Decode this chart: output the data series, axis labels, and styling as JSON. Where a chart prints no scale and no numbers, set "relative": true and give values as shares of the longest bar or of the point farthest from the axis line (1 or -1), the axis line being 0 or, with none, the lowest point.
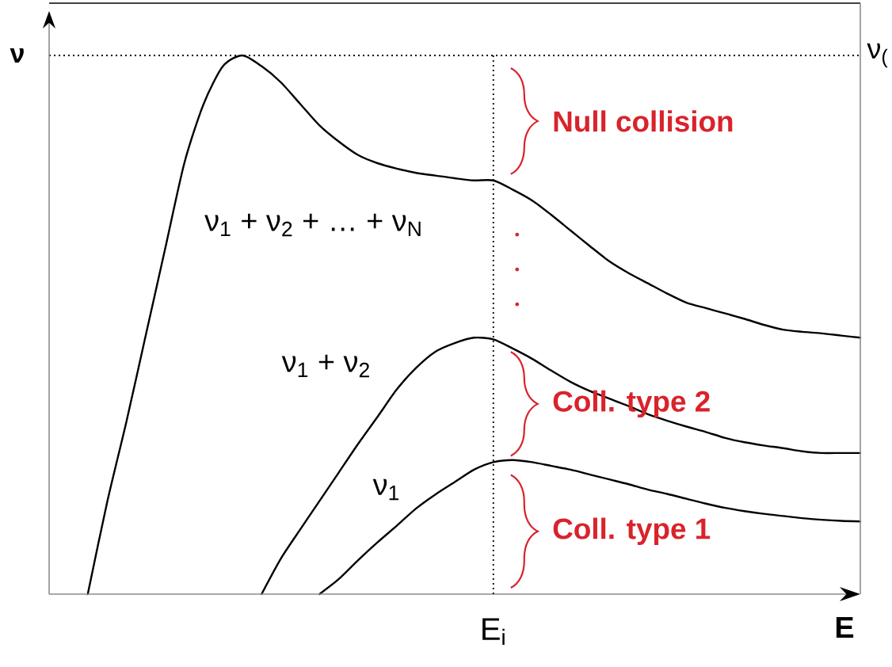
{
  "chart_data": {
    "type": "line",
    "relative": true,
    "xlabel": "E",
    "ylabel": "ν",
    "line_style": "solid",
    "categories": [
      null,
      null,
      null,
      null,
      null,
      null,
      null,
      null,
      null,
      null,
      null,
      null,
      null,
      null,
      null,
      null,
      null,
      null,
      null,
      null,
      null,
      null,
      null,
      null,
      null,
      null,
      null,
      null,
      null,
      null,
      null,
      null,
      null,
      null,
      null,
      null,
      null,
      null,
      null,
      null,
      null,
      null,
      null
    ],
    "series": [
      {
        "name": "ν$_{1}$ + ν$_{2}$ + … + ν$_{N}$",
        "color": "#000000",
        "values": [
          null,
          null,
          0,
          0.17,
          0.32,
          0.48,
          0.64,
          0.8,
          0.91,
          0.98,
          1,
          0.98,
          0.95,
          0.91,
          0.87,
          0.84,
          0.815,
          0.8,
          0.79,
          0.782,
          0.777,
          0.772,
          0.768,
          0.768,
          0.751,
          0.731,
          0.704,
          0.675,
          0.646,
          0.618,
          0.596,
          0.577,
          0.558,
          0.541,
          0.531,
          0.521,
          0.511,
          0.5,
          0.491,
          0.487,
          0.484,
          0.48,
          0.476
        ]
      },
      {
        "name": "ν$_{1}$ + ν$_{2}$",
        "color": "#000000",
        "values": [
          null,
          null,
          null,
          null,
          null,
          null,
          null,
          null,
          null,
          null,
          null,
          0,
          0.066,
          0.12,
          0.173,
          0.226,
          0.279,
          0.329,
          0.38,
          0.42,
          0.45,
          0.466,
          0.476,
          0.473,
          0.456,
          0.437,
          0.415,
          0.394,
          0.377,
          0.363,
          0.349,
          0.334,
          0.322,
          0.311,
          0.301,
          0.29,
          0.282,
          0.276,
          0.271,
          0.265,
          0.262,
          0.262,
          0.262
        ]
      },
      {
        "name": "ν$_{1}$",
        "color": "#000000",
        "values": [
          null,
          null,
          null,
          null,
          null,
          null,
          null,
          null,
          null,
          null,
          null,
          null,
          null,
          null,
          0,
          0.028,
          0.063,
          0.096,
          0.127,
          0.159,
          0.185,
          0.208,
          0.231,
          0.245,
          0.249,
          0.245,
          0.238,
          0.231,
          0.222,
          0.213,
          0.204,
          0.194,
          0.186,
          0.177,
          0.168,
          0.16,
          0.154,
          0.149,
          0.145,
          0.141,
          0.138,
          0.136,
          0.135
        ]
      }
    ],
    "ref_lines": [
      {
        "axis": "y",
        "value": 1,
        "label": "ν$_{(}$",
        "line_style": "dotted"
      }
    ],
    "annotations": [
      "Null collision",
      "Coll. type 2",
      "Coll. type 1",
      "E$_{i}$"
    ]
  }
}
